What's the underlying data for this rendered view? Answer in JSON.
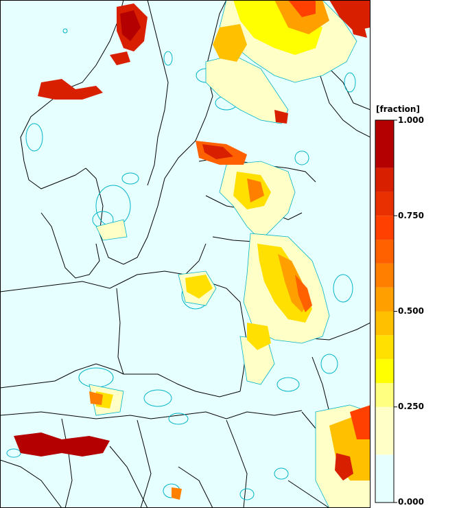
{
  "legend": {
    "unit_label": "[fraction]",
    "ticks": [
      "1.000",
      "0.750",
      "0.500",
      "0.250",
      "0.000"
    ],
    "tick_values": [
      1.0,
      0.75,
      0.5,
      0.25,
      0.0
    ],
    "bins": [
      {
        "from": 0.0,
        "to": 0.125,
        "color": "#e6ffff"
      },
      {
        "from": 0.125,
        "to": 0.25,
        "color": "#ffffc8"
      },
      {
        "from": 0.25,
        "to": 0.3125,
        "color": "#ffff80"
      },
      {
        "from": 0.3125,
        "to": 0.375,
        "color": "#ffff00"
      },
      {
        "from": 0.375,
        "to": 0.4375,
        "color": "#ffe000"
      },
      {
        "from": 0.4375,
        "to": 0.5,
        "color": "#ffc000"
      },
      {
        "from": 0.5,
        "to": 0.5625,
        "color": "#ffa000"
      },
      {
        "from": 0.5625,
        "to": 0.625,
        "color": "#ff8000"
      },
      {
        "from": 0.625,
        "to": 0.6875,
        "color": "#ff6000"
      },
      {
        "from": 0.6875,
        "to": 0.75,
        "color": "#ff4000"
      },
      {
        "from": 0.75,
        "to": 0.8125,
        "color": "#e83000"
      },
      {
        "from": 0.8125,
        "to": 0.875,
        "color": "#d82000"
      },
      {
        "from": 0.875,
        "to": 1.0,
        "color": "#b40000"
      }
    ]
  },
  "colors": {
    "background": "#e6ffff",
    "contour": "#00b4c8",
    "border": "#000000"
  }
}
